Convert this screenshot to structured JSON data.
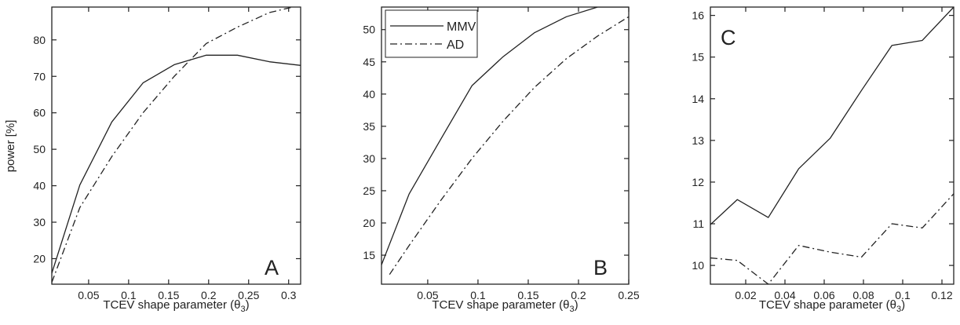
{
  "chart_data": [
    {
      "type": "line",
      "panel_label": "A",
      "xlabel": "TCEV shape parameter",
      "xlabel_symbol": "θ",
      "xlabel_subscript": "3",
      "ylabel": "power [%]",
      "xlim": [
        0.004,
        0.315
      ],
      "ylim": [
        13,
        89
      ],
      "xticks": [
        0.05,
        0.1,
        0.15,
        0.2,
        0.25,
        0.3
      ],
      "xtick_labels": [
        "0.05",
        "0.1",
        "0.15",
        "0.2",
        "0.25",
        "0.3"
      ],
      "yticks": [
        20,
        30,
        40,
        50,
        60,
        70,
        80
      ],
      "ytick_labels": [
        "20",
        "30",
        "40",
        "50",
        "60",
        "70",
        "80"
      ],
      "grid": false,
      "series": [
        {
          "name": "MMV",
          "style": "solid",
          "x": [
            0.004,
            0.039,
            0.079,
            0.118,
            0.157,
            0.197,
            0.236,
            0.276,
            0.315
          ],
          "y": [
            16,
            40.2,
            57.5,
            68.2,
            73.2,
            75.8,
            75.8,
            74,
            73
          ]
        },
        {
          "name": "AD",
          "style": "dashdot",
          "x": [
            0.004,
            0.039,
            0.079,
            0.118,
            0.157,
            0.197,
            0.236,
            0.276,
            0.315
          ],
          "y": [
            13.5,
            34,
            48,
            60,
            70,
            79,
            83.5,
            87.5,
            89.5
          ]
        }
      ]
    },
    {
      "type": "line",
      "panel_label": "B",
      "xlabel": "TCEV shape parameter",
      "xlabel_symbol": "θ",
      "xlabel_subscript": "3",
      "ylabel": "",
      "xlim": [
        0.004,
        0.25
      ],
      "ylim": [
        10.5,
        53.5
      ],
      "xticks": [
        0.05,
        0.1,
        0.15,
        0.2,
        0.25
      ],
      "xtick_labels": [
        "0.05",
        "0.1",
        "0.15",
        "0.2",
        "0.25"
      ],
      "yticks": [
        15,
        20,
        25,
        30,
        35,
        40,
        45,
        50
      ],
      "ytick_labels": [
        "15",
        "20",
        "25",
        "30",
        "35",
        "40",
        "45",
        "50"
      ],
      "legend_position": "top-left",
      "grid": false,
      "series": [
        {
          "name": "MMV",
          "style": "solid",
          "x": [
            0.004,
            0.0315,
            0.063,
            0.094,
            0.125,
            0.156,
            0.188,
            0.219,
            0.25
          ],
          "y": [
            13.5,
            24.5,
            33,
            41.3,
            45.8,
            49.5,
            52,
            53.5,
            53.5
          ]
        },
        {
          "name": "AD",
          "style": "dashdot",
          "x": [
            0.012,
            0.0315,
            0.063,
            0.094,
            0.125,
            0.156,
            0.188,
            0.219,
            0.25
          ],
          "y": [
            12,
            16.5,
            23.5,
            30,
            35.8,
            41,
            45.5,
            49,
            52
          ]
        }
      ]
    },
    {
      "type": "line",
      "panel_label": "C",
      "xlabel": "TCEV shape parameter",
      "xlabel_symbol": "θ",
      "xlabel_subscript": "3",
      "ylabel": "",
      "xlim": [
        0.002,
        0.126
      ],
      "ylim": [
        9.55,
        16.2
      ],
      "xticks": [
        0.02,
        0.04,
        0.06,
        0.08,
        0.1,
        0.12
      ],
      "xtick_labels": [
        "0.02",
        "0.04",
        "0.06",
        "0.08",
        "0.1",
        "0.12"
      ],
      "yticks": [
        10,
        11,
        12,
        13,
        14,
        15,
        16
      ],
      "ytick_labels": [
        "10",
        "11",
        "12",
        "13",
        "14",
        "15",
        "16"
      ],
      "grid": false,
      "series": [
        {
          "name": "MMV",
          "style": "solid",
          "x": [
            0.002,
            0.0157,
            0.0315,
            0.047,
            0.063,
            0.079,
            0.0945,
            0.11,
            0.126
          ],
          "y": [
            10.98,
            11.58,
            11.15,
            12.32,
            13.05,
            14.2,
            15.28,
            15.4,
            16.2
          ]
        },
        {
          "name": "AD",
          "style": "dashdot",
          "x": [
            0.002,
            0.0157,
            0.0315,
            0.047,
            0.063,
            0.079,
            0.0945,
            0.11,
            0.126
          ],
          "y": [
            10.18,
            10.12,
            9.55,
            10.48,
            10.32,
            10.2,
            11,
            10.9,
            11.72
          ]
        }
      ]
    }
  ]
}
